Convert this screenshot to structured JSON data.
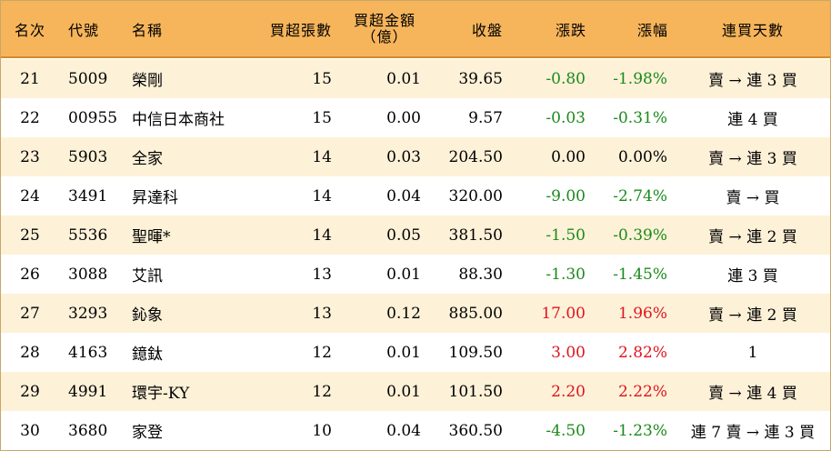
{
  "colors": {
    "header_bg": "#f6b55b",
    "row_alt_bg": "#fdf1d8",
    "up": "#e0141e",
    "down": "#1a8a1a"
  },
  "headers": {
    "rank": "名次",
    "code": "代號",
    "name": "名稱",
    "net_buy_lots": "買超張數",
    "net_buy_amount_line1": "買超金額",
    "net_buy_amount_line2": "（億）",
    "close": "收盤",
    "change": "漲跌",
    "change_pct": "漲幅",
    "consecutive_days": "連買天數"
  },
  "rows": [
    {
      "rank": "21",
      "code": "5009",
      "name": "榮剛",
      "lots": "15",
      "amount": "0.01",
      "close": "39.65",
      "change": "-0.80",
      "pct": "-1.98%",
      "days": "賣 → 連 3 買",
      "dir": "down"
    },
    {
      "rank": "22",
      "code": "00955",
      "name": "中信日本商社",
      "lots": "15",
      "amount": "0.00",
      "close": "9.57",
      "change": "-0.03",
      "pct": "-0.31%",
      "days": "連 4 買",
      "dir": "down"
    },
    {
      "rank": "23",
      "code": "5903",
      "name": "全家",
      "lots": "14",
      "amount": "0.03",
      "close": "204.50",
      "change": "0.00",
      "pct": "0.00%",
      "days": "賣 → 連 3 買",
      "dir": "flat"
    },
    {
      "rank": "24",
      "code": "3491",
      "name": "昇達科",
      "lots": "14",
      "amount": "0.04",
      "close": "320.00",
      "change": "-9.00",
      "pct": "-2.74%",
      "days": "賣 → 買",
      "dir": "down"
    },
    {
      "rank": "25",
      "code": "5536",
      "name": "聖暉*",
      "lots": "14",
      "amount": "0.05",
      "close": "381.50",
      "change": "-1.50",
      "pct": "-0.39%",
      "days": "賣 → 連 2 買",
      "dir": "down"
    },
    {
      "rank": "26",
      "code": "3088",
      "name": "艾訊",
      "lots": "13",
      "amount": "0.01",
      "close": "88.30",
      "change": "-1.30",
      "pct": "-1.45%",
      "days": "連 3 買",
      "dir": "down"
    },
    {
      "rank": "27",
      "code": "3293",
      "name": "鈊象",
      "lots": "13",
      "amount": "0.12",
      "close": "885.00",
      "change": "17.00",
      "pct": "1.96%",
      "days": "賣 → 連 2 買",
      "dir": "up"
    },
    {
      "rank": "28",
      "code": "4163",
      "name": "鐿鈦",
      "lots": "12",
      "amount": "0.01",
      "close": "109.50",
      "change": "3.00",
      "pct": "2.82%",
      "days": "1",
      "dir": "up"
    },
    {
      "rank": "29",
      "code": "4991",
      "name": "環宇-KY",
      "lots": "12",
      "amount": "0.01",
      "close": "101.50",
      "change": "2.20",
      "pct": "2.22%",
      "days": "賣 → 連 4 買",
      "dir": "up"
    },
    {
      "rank": "30",
      "code": "3680",
      "name": "家登",
      "lots": "10",
      "amount": "0.04",
      "close": "360.50",
      "change": "-4.50",
      "pct": "-1.23%",
      "days": "連 7 賣 → 連 3 買",
      "dir": "down"
    }
  ]
}
